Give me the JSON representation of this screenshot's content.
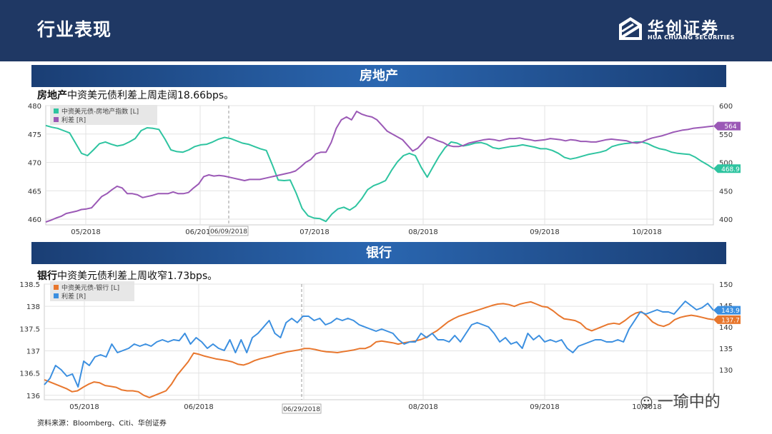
{
  "header": {
    "title": "行业表现",
    "logo_cn": "华创证券",
    "logo_en": "HUA CHUANG SECURITIES"
  },
  "colors": {
    "header_bg": "#1f3864",
    "band_bg": "#1f4e8c",
    "teal": "#2ec4a0",
    "purple": "#9b59b6",
    "orange": "#e8772e",
    "blue": "#3b8fe0"
  },
  "sections": [
    {
      "band_title": "房地产",
      "summary_bold": "房地产",
      "summary_rest": "中资美元债利差上周走阔18.66bps。"
    },
    {
      "band_title": "银行",
      "summary_bold": "银行",
      "summary_rest": "中资美元债利差上周收窄1.73bps。"
    }
  ],
  "chart_data": [
    {
      "type": "line",
      "title": "房地产",
      "x_ticks": [
        "05/2018",
        "06/2018",
        "07/2018",
        "08/2018",
        "09/2018",
        "10/2018"
      ],
      "marker_label": "06/09/2018",
      "left_axis": {
        "ticks": [
          460,
          465,
          470,
          475,
          480
        ],
        "range": [
          459,
          480
        ]
      },
      "right_axis": {
        "ticks": [
          400,
          450,
          500,
          550,
          600
        ],
        "range": [
          390,
          600
        ]
      },
      "series": [
        {
          "name": "中资美元债-房地产指数 [L]",
          "axis": "left",
          "color": "#2ec4a0",
          "end_label": "468.9",
          "values": [
            476.5,
            476.2,
            476,
            475.6,
            475.2,
            473.4,
            471.6,
            471.2,
            472.2,
            473.3,
            473.6,
            473.2,
            472.9,
            473.1,
            473.6,
            474.2,
            475.6,
            476.1,
            476,
            475.8,
            474.1,
            472.2,
            471.9,
            471.8,
            472.2,
            472.8,
            473.1,
            473.2,
            473.6,
            474.1,
            474.4,
            474.2,
            473.8,
            473.4,
            473.2,
            472.8,
            472.4,
            472.1,
            469.6,
            466.9,
            466.8,
            466.9,
            464.6,
            461.9,
            460.6,
            460.2,
            460.1,
            459.6,
            460.9,
            461.8,
            462.1,
            461.6,
            462.3,
            463.6,
            465.2,
            465.9,
            466.3,
            466.8,
            468.6,
            470.1,
            471.2,
            471.6,
            471.2,
            469.1,
            467.4,
            469.3,
            471.1,
            472.6,
            473.6,
            473.4,
            472.9,
            473.1,
            473.4,
            473.5,
            473.2,
            472.6,
            472.4,
            472.6,
            472.8,
            472.9,
            473.1,
            472.9,
            472.7,
            472.4,
            472.4,
            472.1,
            471.6,
            470.9,
            470.6,
            470.8,
            471.1,
            471.4,
            471.6,
            471.8,
            472.1,
            472.8,
            473.1,
            473.3,
            473.4,
            473.6,
            473.6,
            473.3,
            472.8,
            472.4,
            472.2,
            471.8,
            471.6,
            471.5,
            471.4,
            470.9,
            470.2,
            469.6,
            468.9
          ]
        },
        {
          "name": "利差 [R]",
          "axis": "right",
          "color": "#9b59b6",
          "end_label": "564",
          "values": [
            395,
            398,
            402,
            405,
            410,
            412,
            414,
            417,
            418,
            420,
            430,
            440,
            445,
            452,
            458,
            455,
            445,
            445,
            443,
            438,
            440,
            442,
            445,
            445,
            445,
            448,
            445,
            445,
            447,
            455,
            462,
            475,
            478,
            476,
            477,
            476,
            474,
            472,
            470,
            468,
            470,
            470,
            470,
            472,
            474,
            476,
            478,
            480,
            482,
            485,
            492,
            500,
            505,
            515,
            518,
            518,
            535,
            560,
            575,
            580,
            575,
            590,
            585,
            582,
            580,
            575,
            565,
            555,
            550,
            545,
            540,
            530,
            520,
            525,
            535,
            545,
            542,
            538,
            535,
            530,
            528,
            528,
            530,
            534,
            536,
            538,
            540,
            541,
            540,
            538,
            540,
            542,
            542,
            543,
            541,
            540,
            538,
            539,
            540,
            542,
            541,
            540,
            538,
            540,
            539,
            537,
            537,
            536,
            536,
            538,
            540,
            541,
            540,
            539,
            538,
            535,
            534,
            536,
            540,
            543,
            545,
            547,
            550,
            553,
            555,
            557,
            558,
            560,
            561,
            562,
            563,
            564
          ]
        }
      ]
    },
    {
      "type": "line",
      "title": "银行",
      "x_ticks": [
        "05/2018",
        "06/2018",
        "07/2018",
        "08/2018",
        "09/2018",
        "10/2018"
      ],
      "marker_label": "06/29/2018",
      "left_axis": {
        "ticks": [
          136,
          136.5,
          137,
          137.5,
          138,
          138.5
        ],
        "range": [
          135.9,
          138.5
        ]
      },
      "right_axis": {
        "ticks": [
          130,
          135,
          140,
          145,
          150
        ],
        "range": [
          123,
          150
        ]
      },
      "series": [
        {
          "name": "中资美元债-银行 [L]",
          "axis": "left",
          "color": "#e8772e",
          "end_label": "137.7",
          "values": [
            136.35,
            136.3,
            136.25,
            136.2,
            136.15,
            136.08,
            136.1,
            136.18,
            136.25,
            136.3,
            136.28,
            136.22,
            136.2,
            136.18,
            136.12,
            136.1,
            136.1,
            136.08,
            136.0,
            135.95,
            136.0,
            136.05,
            136.1,
            136.25,
            136.45,
            136.6,
            136.75,
            136.95,
            136.92,
            136.88,
            136.85,
            136.82,
            136.8,
            136.78,
            136.75,
            136.7,
            136.68,
            136.72,
            136.78,
            136.82,
            136.85,
            136.88,
            136.92,
            136.95,
            136.98,
            137.0,
            137.02,
            137.05,
            137.05,
            137.03,
            137.0,
            136.98,
            136.97,
            136.96,
            136.98,
            137.0,
            137.02,
            137.05,
            137.05,
            137.1,
            137.2,
            137.22,
            137.2,
            137.18,
            137.15,
            137.18,
            137.2,
            137.22,
            137.25,
            137.3,
            137.38,
            137.45,
            137.55,
            137.65,
            137.72,
            137.78,
            137.82,
            137.86,
            137.9,
            137.94,
            137.98,
            138.02,
            138.05,
            138.06,
            138.04,
            138.0,
            138.05,
            138.08,
            138.1,
            138.05,
            138.0,
            137.98,
            137.9,
            137.8,
            137.72,
            137.7,
            137.68,
            137.62,
            137.5,
            137.45,
            137.5,
            137.55,
            137.6,
            137.62,
            137.6,
            137.68,
            137.78,
            137.85,
            137.88,
            137.78,
            137.65,
            137.58,
            137.55,
            137.6,
            137.7,
            137.75,
            137.78,
            137.8,
            137.78,
            137.75,
            137.72,
            137.7
          ]
        },
        {
          "name": "利差 [R]",
          "axis": "right",
          "color": "#3b8fe0",
          "end_label": "143.9",
          "values": [
            126.5,
            128,
            131,
            130,
            128.5,
            129,
            126,
            132,
            131,
            133,
            133.5,
            133,
            136,
            134,
            134.5,
            135,
            136,
            135.5,
            136,
            135.5,
            136.5,
            137,
            136.5,
            137,
            136.8,
            138.5,
            136,
            137.5,
            136.5,
            135,
            136,
            135,
            134.5,
            137,
            134,
            137,
            134,
            137.5,
            138.5,
            140,
            141.5,
            138.5,
            137.5,
            141,
            142,
            141,
            142.5,
            142.5,
            141.5,
            142,
            140.5,
            141,
            142,
            141.5,
            142,
            141.5,
            140.5,
            140,
            139.5,
            139,
            139.5,
            139,
            138.5,
            137,
            136,
            136.5,
            136.5,
            138.5,
            137.5,
            138.5,
            137,
            137,
            136.5,
            138,
            136.5,
            138.5,
            140.5,
            141,
            140.5,
            140,
            138.5,
            136.5,
            137.5,
            136,
            136.5,
            135,
            138.5,
            137,
            138,
            136.5,
            137,
            136.5,
            137,
            135,
            134,
            135.5,
            136,
            136.5,
            137,
            137,
            136.5,
            136.5,
            137,
            136.5,
            139.5,
            141.5,
            143.5,
            143,
            143.5,
            144,
            143.5,
            143.5,
            143,
            144.5,
            146,
            145,
            144,
            144.5,
            145.5,
            143.9
          ]
        }
      ]
    }
  ],
  "source": "资料来源：Bloomberg、Citi、华创证券",
  "watermark": "一瑜中的"
}
